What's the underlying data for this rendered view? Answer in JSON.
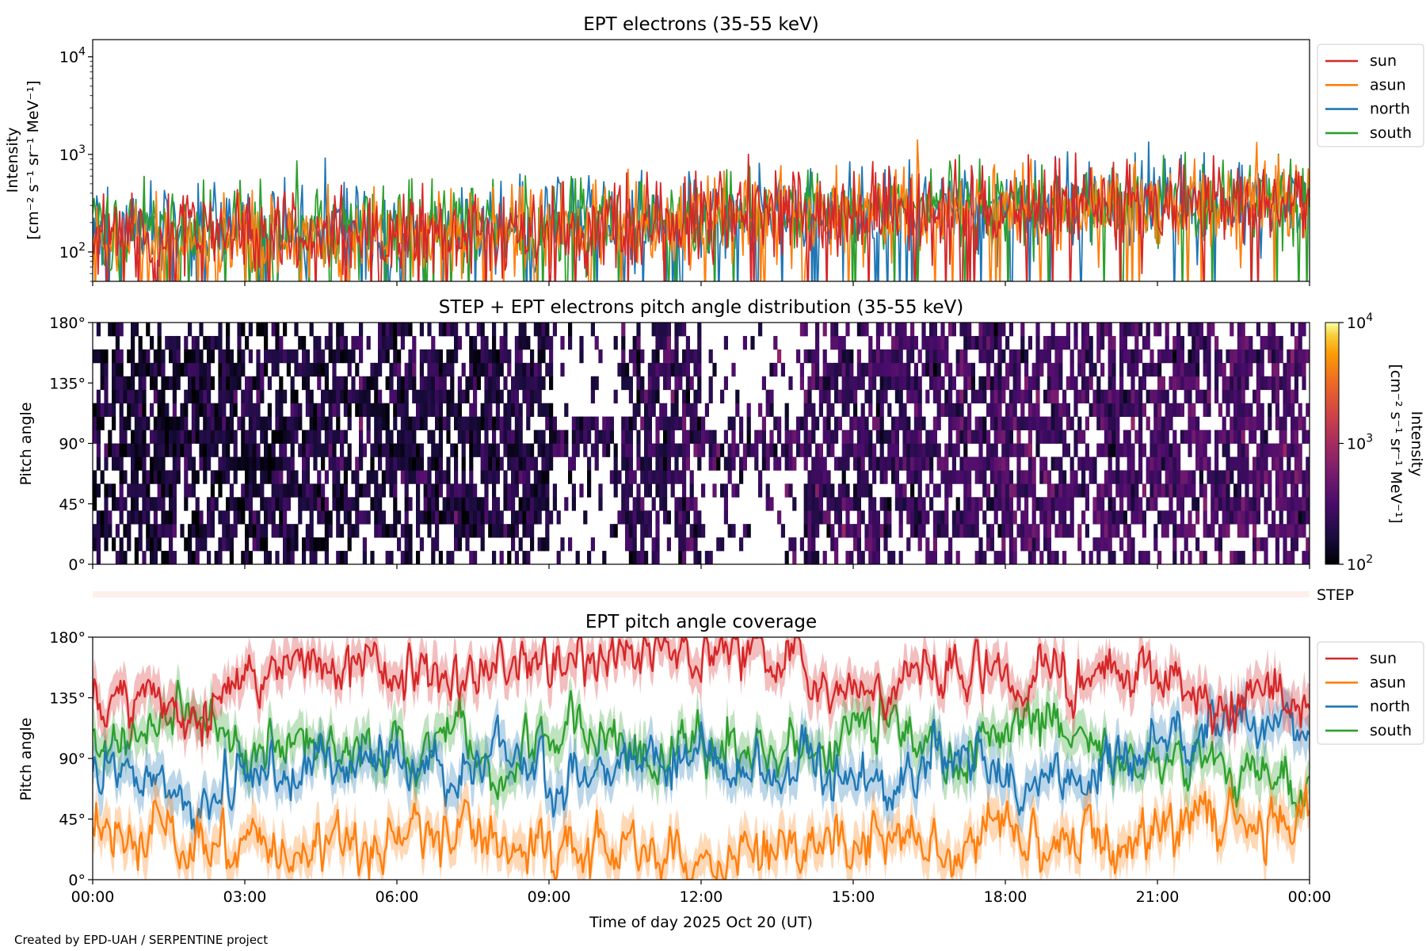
{
  "colors": {
    "sun": "#d62728",
    "asun": "#ff7f0e",
    "north": "#1f77b4",
    "south": "#2ca02c",
    "step_strip": "#fdf0ea"
  },
  "xaxis": {
    "label": "Time of day 2025 Oct 20 (UT)",
    "ticks": [
      "00:00",
      "03:00",
      "06:00",
      "09:00",
      "12:00",
      "15:00",
      "18:00",
      "21:00",
      "00:00"
    ],
    "range_hours": [
      0,
      24
    ]
  },
  "credit": "Created by EPD-UAH / SERPENTINE project",
  "step_label": "STEP",
  "chart_data": [
    {
      "type": "line",
      "title": "EPT electrons (35-55 keV)",
      "ylabel_line1": "Intensity",
      "ylabel_line2": "[cm⁻² s⁻¹ sr⁻¹ MeV⁻¹]",
      "yscale": "log",
      "ylim": [
        50,
        15000
      ],
      "yticks": [
        {
          "value": 100,
          "base": "10",
          "exp": "2"
        },
        {
          "value": 1000,
          "base": "10",
          "exp": "3"
        },
        {
          "value": 10000,
          "base": "10",
          "exp": "4"
        }
      ],
      "legend_placement": "outside-top-right",
      "legend": [
        "sun",
        "asun",
        "north",
        "south"
      ],
      "series": [
        {
          "name": "north",
          "x": [
            0,
            1,
            2,
            3,
            4,
            5,
            6,
            7,
            8,
            9,
            10,
            11,
            12,
            13,
            14,
            15,
            16,
            17,
            18,
            19,
            20,
            21,
            22,
            23,
            24
          ],
          "values": [
            170,
            165,
            170,
            175,
            170,
            180,
            175,
            185,
            180,
            190,
            200,
            210,
            230,
            250,
            240,
            260,
            270,
            265,
            280,
            290,
            300,
            310,
            320,
            315,
            320
          ]
        },
        {
          "name": "south",
          "x": [
            0,
            1,
            2,
            3,
            4,
            5,
            6,
            7,
            8,
            9,
            10,
            11,
            12,
            13,
            14,
            15,
            16,
            17,
            18,
            19,
            20,
            21,
            22,
            23,
            24
          ],
          "values": [
            160,
            160,
            165,
            170,
            165,
            175,
            170,
            180,
            175,
            185,
            195,
            205,
            225,
            240,
            235,
            255,
            265,
            260,
            275,
            285,
            295,
            300,
            310,
            310,
            315
          ]
        },
        {
          "name": "asun",
          "x": [
            0,
            1,
            2,
            3,
            4,
            5,
            6,
            7,
            8,
            9,
            10,
            11,
            12,
            13,
            14,
            15,
            16,
            17,
            18,
            19,
            20,
            21,
            22,
            23,
            24
          ],
          "values": [
            130,
            125,
            130,
            135,
            135,
            140,
            140,
            150,
            150,
            160,
            170,
            180,
            200,
            215,
            215,
            235,
            245,
            245,
            260,
            270,
            280,
            285,
            295,
            295,
            300
          ]
        },
        {
          "name": "sun",
          "x": [
            0,
            1,
            2,
            3,
            4,
            5,
            6,
            7,
            8,
            9,
            10,
            11,
            12,
            13,
            14,
            15,
            16,
            17,
            18,
            19,
            20,
            21,
            22,
            23,
            24
          ],
          "values": [
            150,
            145,
            150,
            155,
            150,
            160,
            160,
            165,
            165,
            175,
            185,
            195,
            215,
            230,
            225,
            245,
            255,
            255,
            270,
            280,
            290,
            295,
            305,
            305,
            310
          ]
        }
      ]
    },
    {
      "type": "heatmap",
      "title": "STEP + EPT electrons pitch angle distribution (35-55 keV)",
      "ylabel": "Pitch angle",
      "ylim": [
        0,
        180
      ],
      "yticks": [
        "0°",
        "45°",
        "90°",
        "135°",
        "180°"
      ],
      "colorbar": {
        "label_line1": "Intensity",
        "label_line2": "[cm⁻² s⁻¹ sr⁻¹ MeV⁻¹]",
        "scale": "log",
        "range": [
          100,
          10000
        ],
        "ticks": [
          {
            "value": 100,
            "base": "10",
            "exp": "2"
          },
          {
            "value": 1000,
            "base": "10",
            "exp": "3"
          },
          {
            "value": 10000,
            "base": "10",
            "exp": "4"
          }
        ]
      },
      "typical_intensity_by_hour": {
        "x": [
          0,
          3,
          6,
          9,
          12,
          15,
          18,
          21,
          24
        ],
        "values": [
          160,
          165,
          175,
          190,
          230,
          255,
          280,
          305,
          315
        ]
      },
      "low_coverage_windows_hours": [
        [
          9.0,
          10.4
        ],
        [
          12.0,
          14.0
        ]
      ]
    },
    {
      "type": "line",
      "title": "EPT pitch angle coverage",
      "ylabel": "Pitch angle",
      "ylim": [
        0,
        180
      ],
      "yticks": [
        "0°",
        "45°",
        "90°",
        "135°",
        "180°"
      ],
      "legend_placement": "outside-top-right",
      "legend": [
        "sun",
        "asun",
        "north",
        "south"
      ],
      "series": [
        {
          "name": "south",
          "x": [
            0,
            1,
            2,
            3,
            4,
            5,
            6,
            7,
            8,
            9,
            10,
            11,
            12,
            13,
            14,
            15,
            16,
            17,
            18,
            19,
            20,
            21,
            22,
            23,
            24
          ],
          "values": [
            110,
            105,
            130,
            95,
            110,
            100,
            90,
            100,
            85,
            110,
            105,
            100,
            100,
            95,
            95,
            110,
            120,
            80,
            120,
            115,
            95,
            85,
            80,
            75,
            70
          ]
        },
        {
          "name": "north",
          "x": [
            0,
            1,
            2,
            3,
            4,
            5,
            6,
            7,
            8,
            9,
            10,
            11,
            12,
            13,
            14,
            15,
            16,
            17,
            18,
            19,
            20,
            21,
            22,
            23,
            24
          ],
          "values": [
            75,
            80,
            55,
            80,
            75,
            90,
            95,
            80,
            95,
            75,
            80,
            85,
            85,
            85,
            90,
            65,
            70,
            100,
            65,
            70,
            85,
            100,
            110,
            120,
            115
          ]
        },
        {
          "name": "asun",
          "x": [
            0,
            1,
            2,
            3,
            4,
            5,
            6,
            7,
            8,
            9,
            10,
            11,
            12,
            13,
            14,
            15,
            16,
            17,
            18,
            19,
            20,
            21,
            22,
            23,
            24
          ],
          "values": [
            45,
            35,
            25,
            30,
            20,
            20,
            30,
            35,
            25,
            20,
            25,
            20,
            15,
            15,
            20,
            35,
            30,
            20,
            40,
            30,
            25,
            40,
            45,
            35,
            45
          ]
        },
        {
          "name": "sun",
          "x": [
            0,
            1,
            2,
            3,
            4,
            5,
            6,
            7,
            8,
            9,
            10,
            11,
            12,
            13,
            14,
            15,
            16,
            17,
            18,
            19,
            20,
            21,
            22,
            23,
            24
          ],
          "values": [
            130,
            150,
            110,
            155,
            160,
            165,
            160,
            150,
            165,
            160,
            165,
            170,
            170,
            165,
            160,
            135,
            140,
            165,
            145,
            155,
            165,
            150,
            130,
            140,
            135
          ]
        }
      ]
    }
  ]
}
